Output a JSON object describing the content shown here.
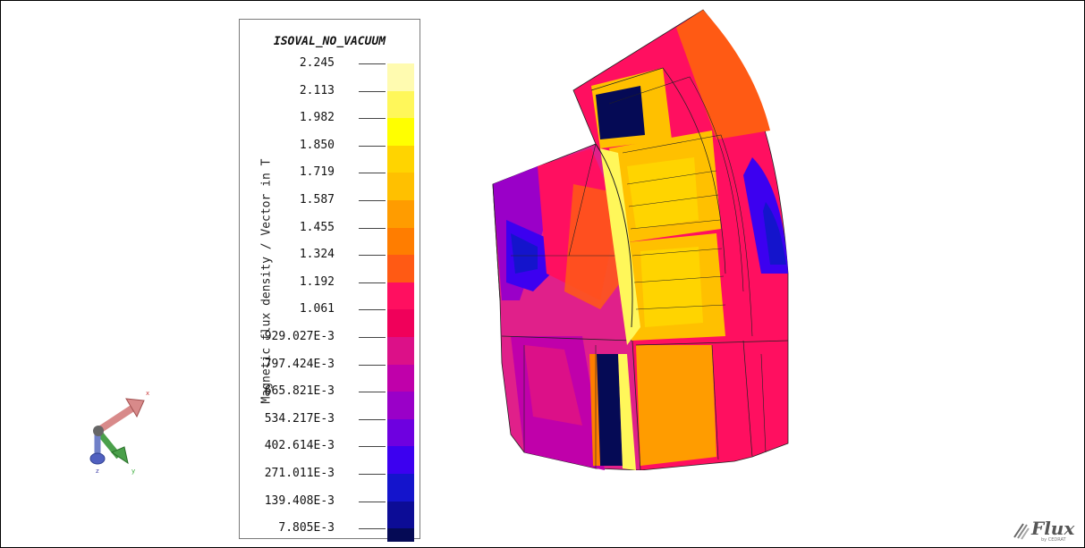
{
  "legend": {
    "title": "ISOVAL_NO_VACUUM",
    "axis_label": "Magnetic flux density / Vector in T",
    "ticks": [
      "2.245",
      "2.113",
      "1.982",
      "1.850",
      "1.719",
      "1.587",
      "1.455",
      "1.324",
      "1.192",
      "1.061",
      "929.027E-3",
      "797.424E-3",
      "665.821E-3",
      "534.217E-3",
      "402.614E-3",
      "271.011E-3",
      "139.408E-3",
      "7.805E-3"
    ],
    "colors": [
      "#fffbb0",
      "#fff75a",
      "#ffff00",
      "#ffd400",
      "#ffc000",
      "#ff9c00",
      "#ff7d00",
      "#ff5a14",
      "#ff0f60",
      "#f0005a",
      "#dc1088",
      "#c000aa",
      "#9a00c8",
      "#6e00e0",
      "#3c00f0",
      "#1414cc",
      "#0c0c96",
      "#050a55"
    ]
  },
  "triad": {
    "x_label": "x",
    "y_label": "y",
    "z_label": "z"
  },
  "logo": {
    "name": "Flux",
    "sub": "by CEDRAT"
  }
}
